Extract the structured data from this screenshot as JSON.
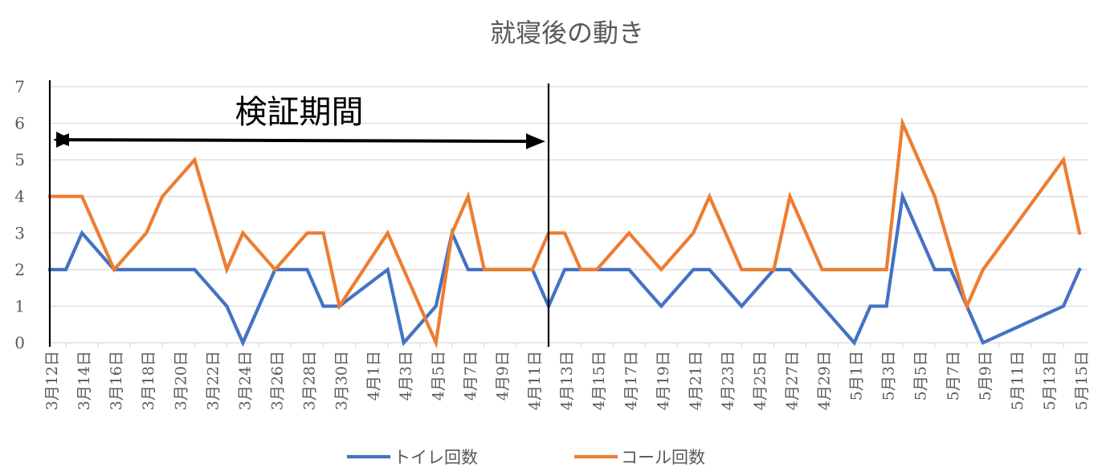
{
  "chart_data": {
    "type": "line",
    "title": "就寝後の動き",
    "xlabel": "",
    "ylabel": "",
    "ylim": [
      0,
      7
    ],
    "yticks": [
      "0",
      "1",
      "2",
      "3",
      "4",
      "5",
      "6",
      "7"
    ],
    "grid": true,
    "legend_position": "bottom",
    "x": [
      "3月12日",
      "3月13日",
      "3月14日",
      "3月15日",
      "3月16日",
      "3月17日",
      "3月18日",
      "3月19日",
      "3月20日",
      "3月21日",
      "3月22日",
      "3月23日",
      "3月24日",
      "3月25日",
      "3月26日",
      "3月27日",
      "3月28日",
      "3月29日",
      "3月30日",
      "3月31日",
      "4月1日",
      "4月2日",
      "4月3日",
      "4月4日",
      "4月5日",
      "4月6日",
      "4月7日",
      "4月8日",
      "4月9日",
      "4月10日",
      "4月11日",
      "4月12日",
      "4月13日",
      "4月14日",
      "4月15日",
      "4月16日",
      "4月17日",
      "4月18日",
      "4月19日",
      "4月20日",
      "4月21日",
      "4月22日",
      "4月23日",
      "4月24日",
      "4月25日",
      "4月26日",
      "4月27日",
      "4月28日",
      "4月29日",
      "4月30日",
      "5月1日",
      "5月2日",
      "5月3日",
      "5月4日",
      "5月5日",
      "5月6日",
      "5月7日",
      "5月8日",
      "5月9日",
      "5月10日",
      "5月11日",
      "5月12日",
      "5月13日",
      "5月14日",
      "5月15日"
    ],
    "tick_labels": [
      "3月12日",
      "3月14日",
      "3月16日",
      "3月18日",
      "3月20日",
      "3月22日",
      "3月24日",
      "3月26日",
      "3月28日",
      "3月30日",
      "4月1日",
      "4月3日",
      "4月5日",
      "4月7日",
      "4月9日",
      "4月11日",
      "4月13日",
      "4月15日",
      "4月17日",
      "4月19日",
      "4月21日",
      "4月23日",
      "4月25日",
      "4月27日",
      "4月29日",
      "5月1日",
      "5月3日",
      "5月5日",
      "5月7日",
      "5月9日",
      "5月11日",
      "5月13日",
      "5月15日"
    ],
    "series": [
      {
        "name": "トイレ回数",
        "color": "#4472c4",
        "points": [
          [
            "3月12日",
            2
          ],
          [
            "3月13日",
            2
          ],
          [
            "3月14日",
            3
          ],
          [
            "3月16日",
            2
          ],
          [
            "3月18日",
            2
          ],
          [
            "3月20日",
            2
          ],
          [
            "3月21日",
            2
          ],
          [
            "3月23日",
            1
          ],
          [
            "3月24日",
            0
          ],
          [
            "3月26日",
            2
          ],
          [
            "3月28日",
            2
          ],
          [
            "3月29日",
            1
          ],
          [
            "3月30日",
            1
          ],
          [
            "4月2日",
            2
          ],
          [
            "4月3日",
            0
          ],
          [
            "4月5日",
            1
          ],
          [
            "4月6日",
            3
          ],
          [
            "4月7日",
            2
          ],
          [
            "4月11日",
            2
          ],
          [
            "4月12日",
            1
          ],
          [
            "4月13日",
            2
          ],
          [
            "4月14日",
            2
          ],
          [
            "4月17日",
            2
          ],
          [
            "4月19日",
            1
          ],
          [
            "4月21日",
            2
          ],
          [
            "4月22日",
            2
          ],
          [
            "4月24日",
            1
          ],
          [
            "4月26日",
            2
          ],
          [
            "4月27日",
            2
          ],
          [
            "5月1日",
            0
          ],
          [
            "5月2日",
            1
          ],
          [
            "5月3日",
            1
          ],
          [
            "5月4日",
            4
          ],
          [
            "5月6日",
            2
          ],
          [
            "5月7日",
            2
          ],
          [
            "5月9日",
            0
          ],
          [
            "5月14日",
            1
          ],
          [
            "5月15日",
            2
          ]
        ]
      },
      {
        "name": "コール回数",
        "color": "#ed7d31",
        "points": [
          [
            "3月12日",
            4
          ],
          [
            "3月14日",
            4
          ],
          [
            "3月16日",
            2
          ],
          [
            "3月18日",
            3
          ],
          [
            "3月19日",
            4
          ],
          [
            "3月21日",
            5
          ],
          [
            "3月23日",
            2
          ],
          [
            "3月24日",
            3
          ],
          [
            "3月26日",
            2
          ],
          [
            "3月28日",
            3
          ],
          [
            "3月29日",
            3
          ],
          [
            "3月30日",
            1
          ],
          [
            "4月2日",
            3
          ],
          [
            "4月5日",
            0
          ],
          [
            "4月6日",
            3
          ],
          [
            "4月7日",
            4
          ],
          [
            "4月8日",
            2
          ],
          [
            "4月11日",
            2
          ],
          [
            "4月12日",
            3
          ],
          [
            "4月13日",
            3
          ],
          [
            "4月14日",
            2
          ],
          [
            "4月15日",
            2
          ],
          [
            "4月17日",
            3
          ],
          [
            "4月19日",
            2
          ],
          [
            "4月21日",
            3
          ],
          [
            "4月22日",
            4
          ],
          [
            "4月24日",
            2
          ],
          [
            "4月26日",
            2
          ],
          [
            "4月27日",
            4
          ],
          [
            "4月29日",
            2
          ],
          [
            "5月3日",
            2
          ],
          [
            "5月4日",
            6
          ],
          [
            "5月6日",
            4
          ],
          [
            "5月8日",
            1
          ],
          [
            "5月9日",
            2
          ],
          [
            "5月14日",
            5
          ],
          [
            "5月15日",
            3
          ]
        ]
      }
    ],
    "annotations": [
      {
        "text": "検証期間",
        "from": "3月12日",
        "to": "4月12日",
        "style": "double-arrow",
        "y_value": 5.55
      }
    ]
  }
}
